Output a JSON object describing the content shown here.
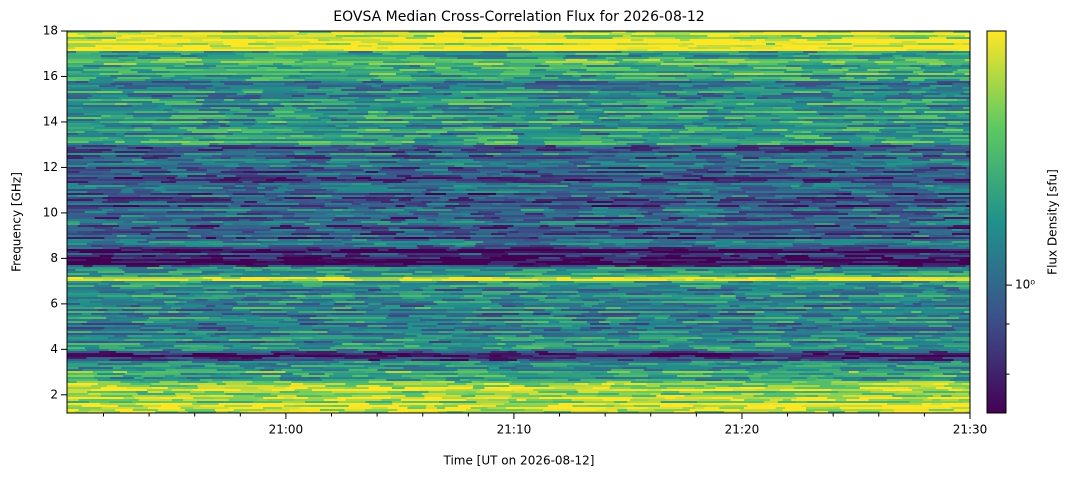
{
  "chart_data": {
    "type": "heatmap",
    "title": "EOVSA Median Cross-Correlation Flux for 2026-08-12",
    "x_label": "Time [UT on 2026-08-12]",
    "y_label": "Frequency [GHz]",
    "colorbar_label": "Flux Density [sfu]",
    "xlim": [
      1250.4,
      1290
    ],
    "xticks": [
      {
        "value": 1260,
        "label": "21:00"
      },
      {
        "value": 1270,
        "label": "21:10"
      },
      {
        "value": 1280,
        "label": "21:20"
      },
      {
        "value": 1290,
        "label": "21:30"
      }
    ],
    "xminorticks": [
      1252,
      1254,
      1256,
      1258,
      1262,
      1264,
      1266,
      1268,
      1272,
      1274,
      1276,
      1278,
      1282,
      1284,
      1286,
      1288
    ],
    "ylim": [
      1.2,
      18
    ],
    "yticks": [
      2,
      4,
      6,
      8,
      10,
      12,
      14,
      16,
      18
    ],
    "clim": [
      0.48,
      4.3
    ],
    "cscale": "log",
    "cticks": [
      {
        "value": 1,
        "label": "10⁰"
      }
    ],
    "cminorticks": [
      0.6,
      0.8
    ],
    "colormap": [
      "#440154",
      "#3b528b",
      "#21918c",
      "#5ec962",
      "#fde725"
    ]
  }
}
